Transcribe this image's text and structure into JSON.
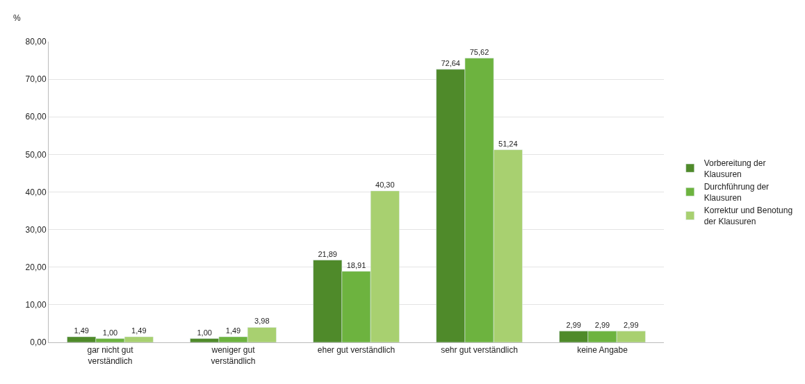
{
  "chart_data": {
    "type": "bar",
    "ylabel": "%",
    "categories": [
      "gar nicht gut verständlich",
      "weniger gut verständlich",
      "eher gut verständlich",
      "sehr gut verständlich",
      "keine Angabe"
    ],
    "series": [
      {
        "name": "Vorbereitung der Klausuren",
        "color": "#4f8a2a",
        "values": [
          1.49,
          1.0,
          21.89,
          72.64,
          2.99
        ],
        "value_labels": [
          "1,49",
          "1,00",
          "21,89",
          "72,64",
          "2,99"
        ]
      },
      {
        "name": "Durchführung der Klausuren",
        "color": "#6db33f",
        "values": [
          1.0,
          1.49,
          18.91,
          75.62,
          2.99
        ],
        "value_labels": [
          "1,00",
          "1,49",
          "18,91",
          "75,62",
          "2,99"
        ]
      },
      {
        "name": "Korrektur und Benotung der Klausuren",
        "color": "#a8d070",
        "values": [
          1.49,
          3.98,
          40.3,
          51.24,
          2.99
        ],
        "value_labels": [
          "1,49",
          "3,98",
          "40,30",
          "51,24",
          "2,99"
        ]
      }
    ],
    "ylim": [
      0,
      80
    ],
    "yticks": [
      {
        "value": 0,
        "label": "0,00"
      },
      {
        "value": 10,
        "label": "10,00"
      },
      {
        "value": 20,
        "label": "20,00"
      },
      {
        "value": 30,
        "label": "30,00"
      },
      {
        "value": 40,
        "label": "40,00"
      },
      {
        "value": 50,
        "label": "50,00"
      },
      {
        "value": 60,
        "label": "60,00"
      },
      {
        "value": 70,
        "label": "70,00"
      },
      {
        "value": 80,
        "label": "80,00"
      }
    ],
    "grid": "y",
    "legend": "right"
  }
}
